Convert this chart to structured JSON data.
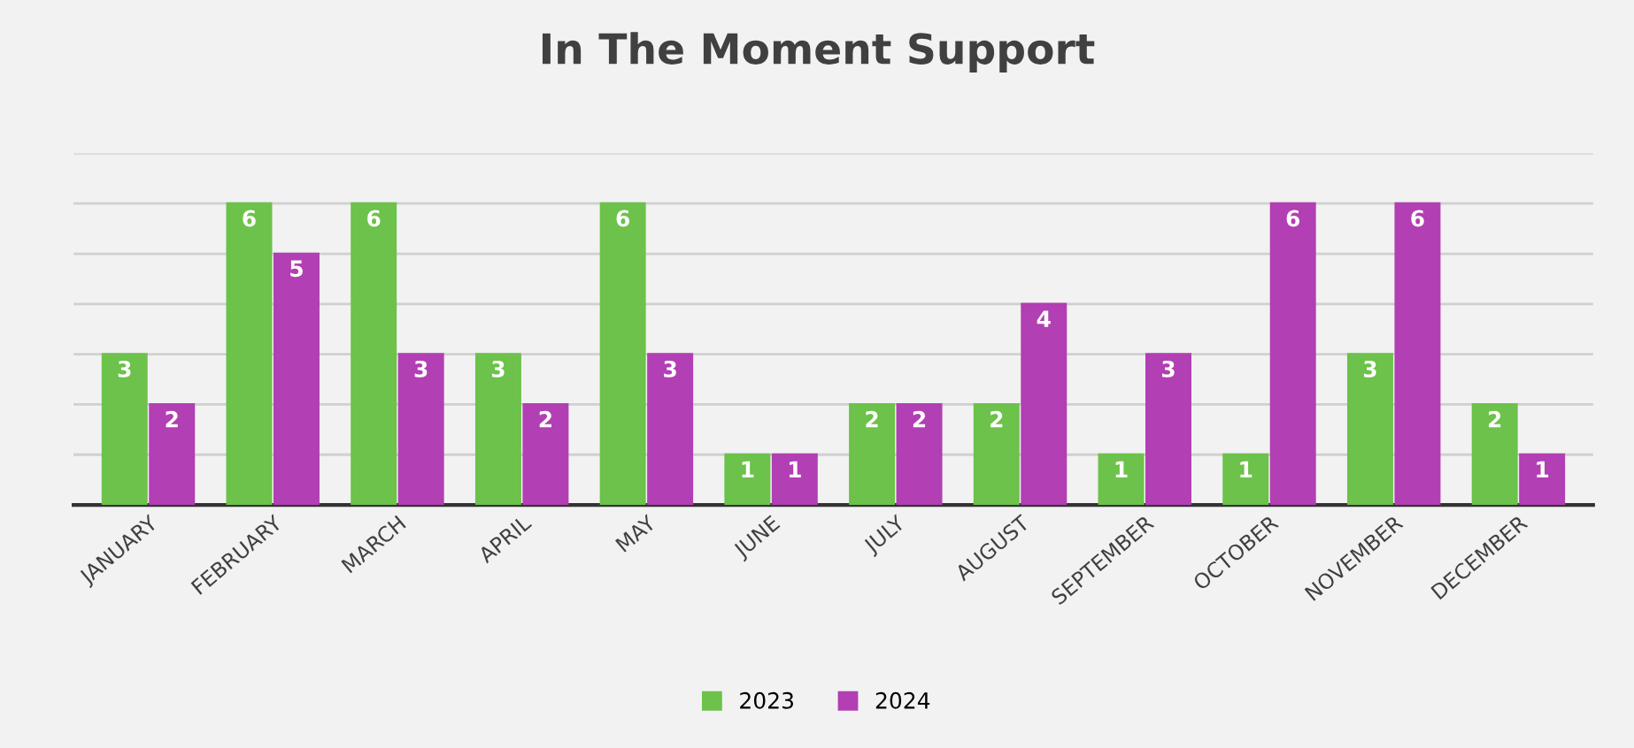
{
  "chart_data": {
    "type": "bar",
    "title": "In The Moment Support",
    "categories": [
      "JANUARY",
      "FEBRUARY",
      "MARCH",
      "APRIL",
      "MAY",
      "JUNE",
      "JULY",
      "AUGUST",
      "SEPTEMBER",
      "OCTOBER",
      "NOVEMBER",
      "DECEMBER"
    ],
    "series": [
      {
        "name": "2023",
        "color": "#6cc24a",
        "values": [
          3,
          6,
          6,
          3,
          6,
          1,
          2,
          2,
          1,
          1,
          3,
          2
        ]
      },
      {
        "name": "2024",
        "color": "#b23fb3",
        "values": [
          2,
          5,
          3,
          2,
          3,
          1,
          2,
          4,
          3,
          6,
          6,
          1
        ]
      }
    ],
    "ylim": [
      0,
      7
    ],
    "yticks": [
      {
        "value": 0,
        "label": null
      },
      {
        "value": 1,
        "label": null
      },
      {
        "value": 2,
        "label": null
      },
      {
        "value": 3,
        "label": null
      },
      {
        "value": 4,
        "label": null
      },
      {
        "value": 5,
        "label": null
      },
      {
        "value": 6,
        "label": null
      },
      {
        "value": 7,
        "label": null
      }
    ],
    "tick_labels": "x",
    "grid": "y",
    "legend": "bottom",
    "data_labels": true
  }
}
